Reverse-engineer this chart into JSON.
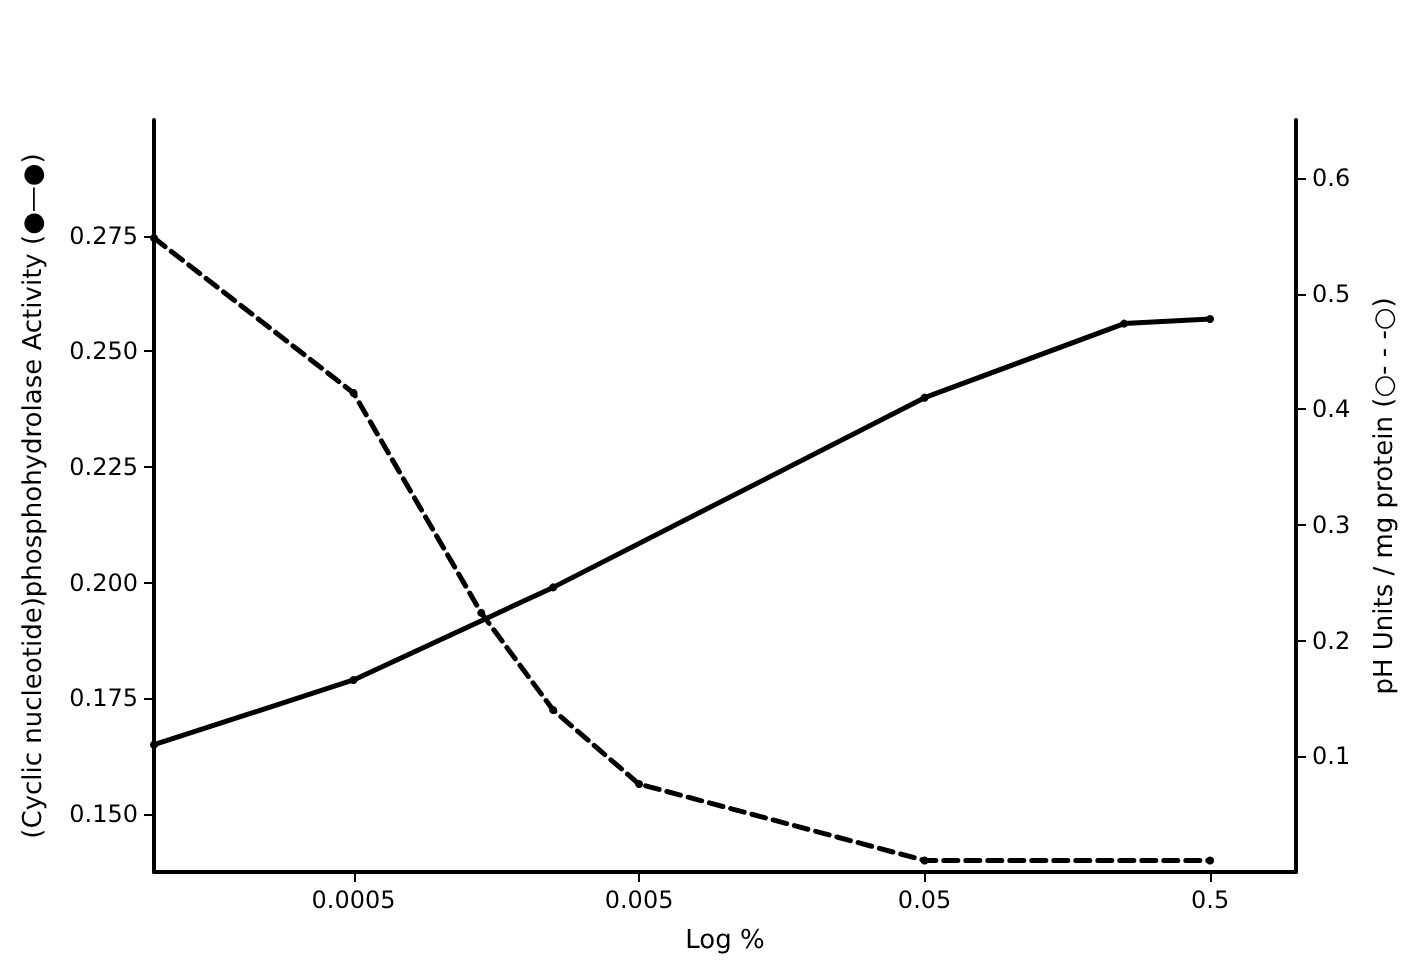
{
  "chart_data": {
    "type": "line",
    "xlabel": "Log %",
    "ylabel": "(Cyclic nucleotide)phosphohydrolase Activity (●—●)",
    "y2label": "pH Units / mg protein (○- - -○)",
    "log": "x",
    "xlim": [
      0.0001,
      1
    ],
    "xticks": [
      0.0005,
      0.005,
      0.05,
      0.5
    ],
    "ylim": [
      0.1375,
      0.3
    ],
    "yticks": [
      {
        "value": 0.15,
        "label": "0.150"
      },
      0.175,
      {
        "value": 0.2,
        "label": "0.200"
      },
      0.225,
      {
        "value": 0.25,
        "label": "0.250"
      },
      0.275
    ],
    "y2lim": [
      0,
      0.65
    ],
    "y2ticks": [
      0.1,
      0.2,
      0.3,
      0.4,
      0.5,
      0.6
    ],
    "grid": false,
    "marker": "circle",
    "series": [
      {
        "color": "#000000",
        "line_style": "solid",
        "x": [
          0.0001,
          0.0005,
          0.0025,
          0.05,
          0.25,
          0.5
        ],
        "values": [
          0.165,
          0.179,
          0.199,
          0.24,
          0.256,
          0.257
        ]
      },
      {
        "color": "#000000",
        "line_style": "dashed",
        "axis": "y2",
        "x": [
          0.0001,
          0.0005,
          0.0014,
          0.0025,
          0.005,
          0.05,
          0.5
        ],
        "values": [
          0.548,
          0.414,
          0.224,
          0.14,
          0.076,
          0.01,
          0.01
        ]
      }
    ]
  }
}
